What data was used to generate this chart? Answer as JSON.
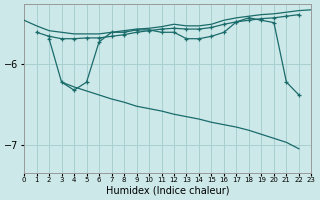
{
  "xlabel": "Humidex (Indice chaleur)",
  "bg_color": "#cde8e8",
  "grid_color": "#a8d0d0",
  "line_color": "#1a6b6b",
  "xlim": [
    0,
    23
  ],
  "ylim": [
    -7.35,
    -5.25
  ],
  "yticks": [
    -7,
    -6
  ],
  "xticks": [
    0,
    1,
    2,
    3,
    4,
    5,
    6,
    7,
    8,
    9,
    10,
    11,
    12,
    13,
    14,
    15,
    16,
    17,
    18,
    19,
    20,
    21,
    22,
    23
  ],
  "series1": {
    "x": [
      0,
      1,
      2,
      3,
      4,
      5,
      6,
      7,
      8,
      9,
      10,
      11,
      12,
      13,
      14,
      15,
      16,
      17,
      18,
      19,
      20,
      21,
      22,
      23
    ],
    "y": [
      -5.45,
      -5.52,
      -5.58,
      -5.6,
      -5.62,
      -5.62,
      -5.62,
      -5.6,
      -5.58,
      -5.56,
      -5.55,
      -5.53,
      -5.5,
      -5.52,
      -5.52,
      -5.5,
      -5.45,
      -5.42,
      -5.4,
      -5.38,
      -5.37,
      -5.35,
      -5.33,
      -5.32
    ]
  },
  "series2": {
    "x": [
      1,
      2,
      3,
      4,
      5,
      6,
      7,
      8,
      9,
      10,
      11,
      12,
      13,
      14,
      15,
      16,
      17,
      18,
      19,
      20,
      21,
      22
    ],
    "y": [
      -5.6,
      -5.65,
      -5.68,
      -5.68,
      -5.67,
      -5.67,
      -5.65,
      -5.63,
      -5.6,
      -5.58,
      -5.56,
      -5.55,
      -5.56,
      -5.56,
      -5.54,
      -5.5,
      -5.47,
      -5.45,
      -5.43,
      -5.42,
      -5.4,
      -5.38
    ],
    "has_markers": true
  },
  "series3": {
    "x": [
      2,
      3,
      4,
      5,
      6,
      7,
      8,
      9,
      10,
      11,
      12,
      13,
      14,
      15,
      16,
      17,
      18,
      19,
      20,
      21,
      22
    ],
    "y": [
      -5.68,
      -6.22,
      -6.32,
      -6.22,
      -5.72,
      -5.6,
      -5.6,
      -5.57,
      -5.57,
      -5.6,
      -5.6,
      -5.68,
      -5.68,
      -5.65,
      -5.6,
      -5.47,
      -5.42,
      -5.45,
      -5.48,
      -6.22,
      -6.38
    ],
    "has_markers": true
  },
  "series4": {
    "x": [
      3,
      4,
      5,
      6,
      7,
      8,
      9,
      10,
      11,
      12,
      13,
      14,
      15,
      16,
      17,
      18,
      19,
      20,
      21,
      22
    ],
    "y": [
      -6.22,
      -6.28,
      -6.33,
      -6.38,
      -6.43,
      -6.47,
      -6.52,
      -6.55,
      -6.58,
      -6.62,
      -6.65,
      -6.68,
      -6.72,
      -6.75,
      -6.78,
      -6.82,
      -6.87,
      -6.92,
      -6.97,
      -7.05
    ],
    "has_markers": false
  }
}
